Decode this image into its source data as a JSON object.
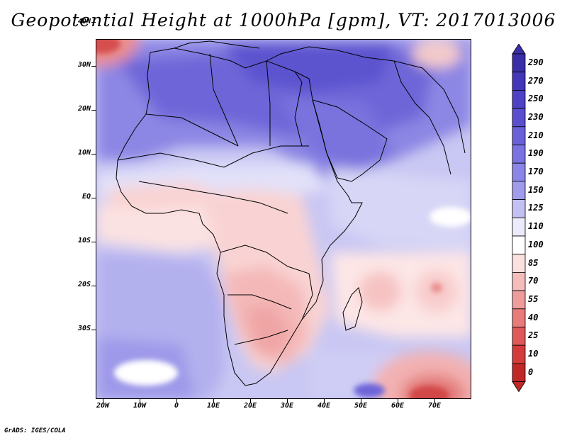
{
  "title": "Geopotential Height at 1000hPa [gpm], VT: 2017013006",
  "footer": "GrADS: IGES/COLA",
  "axes": {
    "lat_labels": [
      "40N",
      "30N",
      "20N",
      "10N",
      "EQ",
      "10S",
      "20S",
      "30S"
    ],
    "lon_labels": [
      "20W",
      "10W",
      "0",
      "10E",
      "20E",
      "30E",
      "40E",
      "50E",
      "60E",
      "70E"
    ]
  },
  "colorbar": {
    "levels": [
      "290",
      "270",
      "250",
      "230",
      "210",
      "190",
      "170",
      "150",
      "125",
      "110",
      "100",
      "85",
      "70",
      "55",
      "40",
      "25",
      "10",
      "0"
    ],
    "colors": [
      "#3a2ea8",
      "#4436b8",
      "#4f42c4",
      "#5b4fd0",
      "#6a60d8",
      "#7a72e0",
      "#8a85e6",
      "#a09ceb",
      "#c3c1f2",
      "#ebebfb",
      "#ffffff",
      "#fbe0e0",
      "#f5bcbc",
      "#ef9c9c",
      "#e87a7a",
      "#e05858",
      "#d43c3c",
      "#c02828"
    ]
  },
  "colors": {
    "high": "#5a50d2",
    "mid_high": "#a8a4ee",
    "neutral": "#ffffff",
    "low": "#f5c2c2",
    "very_low": "#d23a3a",
    "coast": "#000000"
  }
}
